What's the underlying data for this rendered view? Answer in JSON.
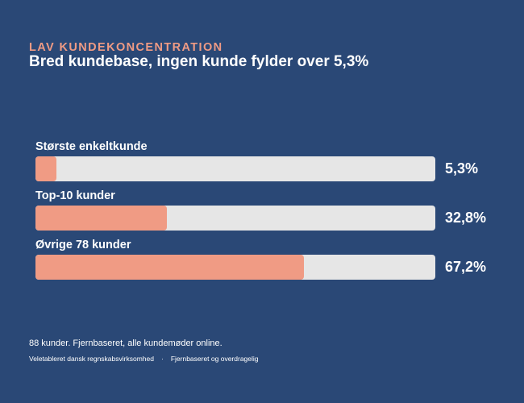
{
  "header": {
    "eyebrow": "LAV KUNDEKONCENTRATION",
    "title": "Bred kundebase, ingen kunde fylder over 5,3%"
  },
  "chart_data": {
    "type": "bar",
    "orientation": "horizontal",
    "categories": [
      "Største enkeltkunde",
      "Top-10 kunder",
      "Øvrige 78 kunder"
    ],
    "values": [
      5.3,
      32.8,
      67.2
    ],
    "value_labels": [
      "5,3%",
      "32,8%",
      "67,2%"
    ],
    "xlim": [
      0,
      100
    ],
    "unit": "%",
    "grid": false,
    "legend": "none"
  },
  "footer": {
    "note": "88 kunder. Fjernbaseret, alle kundemøder online.",
    "source_left": "Veletableret dansk regnskabsvirksomhed",
    "separator": "·",
    "source_right": "Fjernbaseret og overdragelig"
  },
  "colors": {
    "background": "#2a4876",
    "accent": "#f09b84",
    "track": "#e6e6e6",
    "text": "#ffffff"
  }
}
